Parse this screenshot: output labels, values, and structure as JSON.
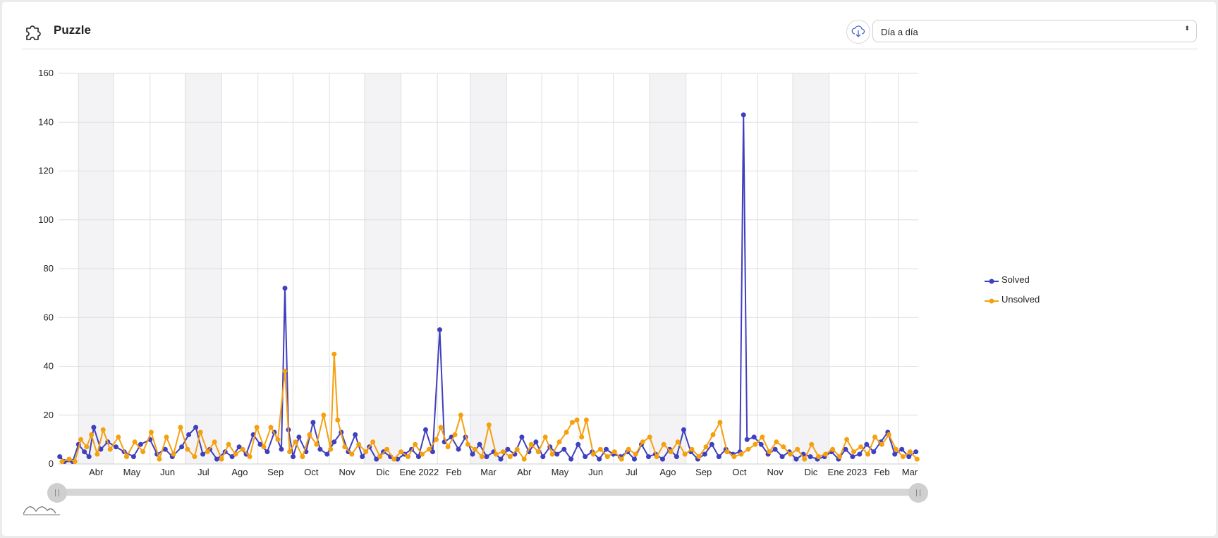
{
  "header": {
    "title": "Puzzle",
    "icon": "puzzle-icon",
    "download_icon": "cloud-download-icon"
  },
  "period_select": {
    "value": "Día a día",
    "arrows": "⬍"
  },
  "colors": {
    "solved": "#3f3fc0",
    "unsolved": "#f5a00f",
    "band": "#f3f3f5",
    "grid": "#dedede"
  },
  "chart_data": {
    "type": "line",
    "title": "",
    "xlabel": "",
    "ylabel": "",
    "x_range": [
      "2021-03-15",
      "2023-03-18"
    ],
    "ylim": [
      0,
      160
    ],
    "y_ticks": [
      0,
      20,
      40,
      60,
      80,
      100,
      120,
      140,
      160
    ],
    "x_ticks": [
      {
        "label": "Abr",
        "date": "2021-04-01"
      },
      {
        "label": "May",
        "date": "2021-05-01"
      },
      {
        "label": "Jun",
        "date": "2021-06-01"
      },
      {
        "label": "Jul",
        "date": "2021-07-01"
      },
      {
        "label": "Ago",
        "date": "2021-08-01"
      },
      {
        "label": "Sep",
        "date": "2021-09-01"
      },
      {
        "label": "Oct",
        "date": "2021-10-01"
      },
      {
        "label": "Nov",
        "date": "2021-11-01"
      },
      {
        "label": "Dic",
        "date": "2021-12-01"
      },
      {
        "label": "Ene 2022",
        "date": "2022-01-01"
      },
      {
        "label": "Feb",
        "date": "2022-02-01"
      },
      {
        "label": "Mar",
        "date": "2022-03-01"
      },
      {
        "label": "Abr",
        "date": "2022-04-01"
      },
      {
        "label": "May",
        "date": "2022-05-01"
      },
      {
        "label": "Jun",
        "date": "2022-06-01"
      },
      {
        "label": "Jul",
        "date": "2022-07-01"
      },
      {
        "label": "Ago",
        "date": "2022-08-01"
      },
      {
        "label": "Sep",
        "date": "2022-09-01"
      },
      {
        "label": "Oct",
        "date": "2022-10-01"
      },
      {
        "label": "Nov",
        "date": "2022-11-01"
      },
      {
        "label": "Dic",
        "date": "2022-12-01"
      },
      {
        "label": "Ene 2023",
        "date": "2023-01-01"
      },
      {
        "label": "Feb",
        "date": "2023-02-01"
      },
      {
        "label": "Mar",
        "date": "2023-03-01"
      }
    ],
    "grid": true,
    "legend_position": "right",
    "series": [
      {
        "name": "Solved",
        "color": "#3f3fc0",
        "points": [
          [
            "2021-03-16",
            3
          ],
          [
            "2021-03-20",
            1
          ],
          [
            "2021-03-27",
            1
          ],
          [
            "2021-04-01",
            8
          ],
          [
            "2021-04-06",
            5
          ],
          [
            "2021-04-10",
            3
          ],
          [
            "2021-04-14",
            15
          ],
          [
            "2021-04-20",
            6
          ],
          [
            "2021-04-26",
            9
          ],
          [
            "2021-05-03",
            7
          ],
          [
            "2021-05-10",
            5
          ],
          [
            "2021-05-18",
            3
          ],
          [
            "2021-05-24",
            8
          ],
          [
            "2021-06-01",
            10
          ],
          [
            "2021-06-07",
            4
          ],
          [
            "2021-06-14",
            6
          ],
          [
            "2021-06-20",
            3
          ],
          [
            "2021-06-28",
            7
          ],
          [
            "2021-07-04",
            12
          ],
          [
            "2021-07-10",
            15
          ],
          [
            "2021-07-16",
            4
          ],
          [
            "2021-07-22",
            6
          ],
          [
            "2021-07-28",
            2
          ],
          [
            "2021-08-04",
            5
          ],
          [
            "2021-08-10",
            3
          ],
          [
            "2021-08-16",
            7
          ],
          [
            "2021-08-22",
            4
          ],
          [
            "2021-08-28",
            12
          ],
          [
            "2021-09-03",
            8
          ],
          [
            "2021-09-09",
            5
          ],
          [
            "2021-09-15",
            13
          ],
          [
            "2021-09-21",
            6
          ],
          [
            "2021-09-24",
            72
          ],
          [
            "2021-09-27",
            14
          ],
          [
            "2021-10-01",
            3
          ],
          [
            "2021-10-06",
            11
          ],
          [
            "2021-10-12",
            5
          ],
          [
            "2021-10-18",
            17
          ],
          [
            "2021-10-24",
            6
          ],
          [
            "2021-10-30",
            4
          ],
          [
            "2021-11-05",
            9
          ],
          [
            "2021-11-11",
            13
          ],
          [
            "2021-11-17",
            5
          ],
          [
            "2021-11-23",
            12
          ],
          [
            "2021-11-29",
            3
          ],
          [
            "2021-12-05",
            7
          ],
          [
            "2021-12-11",
            2
          ],
          [
            "2021-12-17",
            5
          ],
          [
            "2021-12-23",
            3
          ],
          [
            "2021-12-29",
            2
          ],
          [
            "2022-01-04",
            4
          ],
          [
            "2022-01-10",
            6
          ],
          [
            "2022-01-16",
            3
          ],
          [
            "2022-01-22",
            14
          ],
          [
            "2022-01-28",
            5
          ],
          [
            "2022-02-03",
            55
          ],
          [
            "2022-02-07",
            9
          ],
          [
            "2022-02-13",
            11
          ],
          [
            "2022-02-19",
            6
          ],
          [
            "2022-02-25",
            11
          ],
          [
            "2022-03-03",
            4
          ],
          [
            "2022-03-09",
            8
          ],
          [
            "2022-03-15",
            3
          ],
          [
            "2022-03-21",
            5
          ],
          [
            "2022-03-27",
            2
          ],
          [
            "2022-04-02",
            6
          ],
          [
            "2022-04-08",
            4
          ],
          [
            "2022-04-14",
            11
          ],
          [
            "2022-04-20",
            5
          ],
          [
            "2022-04-26",
            9
          ],
          [
            "2022-05-02",
            3
          ],
          [
            "2022-05-08",
            7
          ],
          [
            "2022-05-14",
            4
          ],
          [
            "2022-05-20",
            6
          ],
          [
            "2022-05-26",
            2
          ],
          [
            "2022-06-01",
            8
          ],
          [
            "2022-06-07",
            3
          ],
          [
            "2022-06-13",
            5
          ],
          [
            "2022-06-19",
            2
          ],
          [
            "2022-06-25",
            6
          ],
          [
            "2022-07-01",
            4
          ],
          [
            "2022-07-07",
            3
          ],
          [
            "2022-07-13",
            5
          ],
          [
            "2022-07-19",
            2
          ],
          [
            "2022-07-25",
            8
          ],
          [
            "2022-07-31",
            3
          ],
          [
            "2022-08-06",
            4
          ],
          [
            "2022-08-12",
            2
          ],
          [
            "2022-08-18",
            6
          ],
          [
            "2022-08-24",
            3
          ],
          [
            "2022-08-30",
            14
          ],
          [
            "2022-09-05",
            5
          ],
          [
            "2022-09-11",
            2
          ],
          [
            "2022-09-17",
            4
          ],
          [
            "2022-09-23",
            8
          ],
          [
            "2022-09-29",
            3
          ],
          [
            "2022-10-05",
            6
          ],
          [
            "2022-10-11",
            4
          ],
          [
            "2022-10-17",
            5
          ],
          [
            "2022-10-20",
            143
          ],
          [
            "2022-10-23",
            10
          ],
          [
            "2022-10-29",
            11
          ],
          [
            "2022-11-04",
            8
          ],
          [
            "2022-11-10",
            4
          ],
          [
            "2022-11-16",
            6
          ],
          [
            "2022-11-22",
            3
          ],
          [
            "2022-11-28",
            5
          ],
          [
            "2022-12-04",
            2
          ],
          [
            "2022-12-10",
            4
          ],
          [
            "2022-12-16",
            3
          ],
          [
            "2022-12-22",
            2
          ],
          [
            "2022-12-28",
            3
          ],
          [
            "2023-01-03",
            5
          ],
          [
            "2023-01-09",
            2
          ],
          [
            "2023-01-15",
            6
          ],
          [
            "2023-01-21",
            3
          ],
          [
            "2023-01-27",
            4
          ],
          [
            "2023-02-02",
            8
          ],
          [
            "2023-02-08",
            5
          ],
          [
            "2023-02-14",
            9
          ],
          [
            "2023-02-20",
            13
          ],
          [
            "2023-02-26",
            4
          ],
          [
            "2023-03-04",
            6
          ],
          [
            "2023-03-10",
            3
          ],
          [
            "2023-03-16",
            5
          ]
        ]
      },
      {
        "name": "Unsolved",
        "color": "#f5a00f",
        "points": [
          [
            "2021-03-18",
            1
          ],
          [
            "2021-03-24",
            2
          ],
          [
            "2021-03-29",
            1
          ],
          [
            "2021-04-03",
            10
          ],
          [
            "2021-04-08",
            7
          ],
          [
            "2021-04-12",
            12
          ],
          [
            "2021-04-17",
            4
          ],
          [
            "2021-04-22",
            14
          ],
          [
            "2021-04-28",
            6
          ],
          [
            "2021-05-05",
            11
          ],
          [
            "2021-05-12",
            3
          ],
          [
            "2021-05-19",
            9
          ],
          [
            "2021-05-26",
            5
          ],
          [
            "2021-06-02",
            13
          ],
          [
            "2021-06-09",
            2
          ],
          [
            "2021-06-15",
            11
          ],
          [
            "2021-06-21",
            4
          ],
          [
            "2021-06-27",
            15
          ],
          [
            "2021-07-03",
            6
          ],
          [
            "2021-07-09",
            3
          ],
          [
            "2021-07-14",
            13
          ],
          [
            "2021-07-20",
            5
          ],
          [
            "2021-07-26",
            9
          ],
          [
            "2021-08-01",
            2
          ],
          [
            "2021-08-07",
            8
          ],
          [
            "2021-08-13",
            4
          ],
          [
            "2021-08-19",
            6
          ],
          [
            "2021-08-25",
            3
          ],
          [
            "2021-08-31",
            15
          ],
          [
            "2021-09-06",
            7
          ],
          [
            "2021-09-12",
            15
          ],
          [
            "2021-09-18",
            10
          ],
          [
            "2021-09-24",
            38
          ],
          [
            "2021-09-28",
            5
          ],
          [
            "2021-10-03",
            9
          ],
          [
            "2021-10-09",
            3
          ],
          [
            "2021-10-15",
            12
          ],
          [
            "2021-10-21",
            8
          ],
          [
            "2021-10-27",
            20
          ],
          [
            "2021-11-02",
            6
          ],
          [
            "2021-11-05",
            45
          ],
          [
            "2021-11-08",
            18
          ],
          [
            "2021-11-14",
            7
          ],
          [
            "2021-11-20",
            4
          ],
          [
            "2021-11-26",
            8
          ],
          [
            "2021-12-02",
            5
          ],
          [
            "2021-12-08",
            9
          ],
          [
            "2021-12-14",
            3
          ],
          [
            "2021-12-20",
            6
          ],
          [
            "2021-12-26",
            2
          ],
          [
            "2022-01-01",
            5
          ],
          [
            "2022-01-07",
            3
          ],
          [
            "2022-01-13",
            8
          ],
          [
            "2022-01-19",
            4
          ],
          [
            "2022-01-25",
            6
          ],
          [
            "2022-01-31",
            10
          ],
          [
            "2022-02-04",
            15
          ],
          [
            "2022-02-10",
            7
          ],
          [
            "2022-02-16",
            12
          ],
          [
            "2022-02-21",
            20
          ],
          [
            "2022-02-27",
            8
          ],
          [
            "2022-03-05",
            6
          ],
          [
            "2022-03-11",
            3
          ],
          [
            "2022-03-17",
            16
          ],
          [
            "2022-03-23",
            4
          ],
          [
            "2022-03-29",
            5
          ],
          [
            "2022-04-04",
            3
          ],
          [
            "2022-04-10",
            6
          ],
          [
            "2022-04-16",
            2
          ],
          [
            "2022-04-22",
            8
          ],
          [
            "2022-04-28",
            5
          ],
          [
            "2022-05-04",
            11
          ],
          [
            "2022-05-10",
            4
          ],
          [
            "2022-05-16",
            9
          ],
          [
            "2022-05-22",
            13
          ],
          [
            "2022-05-27",
            17
          ],
          [
            "2022-05-31",
            18
          ],
          [
            "2022-06-04",
            11
          ],
          [
            "2022-06-08",
            18
          ],
          [
            "2022-06-14",
            4
          ],
          [
            "2022-06-20",
            6
          ],
          [
            "2022-06-26",
            3
          ],
          [
            "2022-07-02",
            5
          ],
          [
            "2022-07-08",
            2
          ],
          [
            "2022-07-14",
            6
          ],
          [
            "2022-07-20",
            4
          ],
          [
            "2022-07-26",
            9
          ],
          [
            "2022-08-01",
            11
          ],
          [
            "2022-08-07",
            3
          ],
          [
            "2022-08-13",
            8
          ],
          [
            "2022-08-19",
            5
          ],
          [
            "2022-08-25",
            9
          ],
          [
            "2022-08-31",
            4
          ],
          [
            "2022-09-06",
            6
          ],
          [
            "2022-09-12",
            3
          ],
          [
            "2022-09-18",
            7
          ],
          [
            "2022-09-24",
            12
          ],
          [
            "2022-09-30",
            17
          ],
          [
            "2022-10-06",
            5
          ],
          [
            "2022-10-12",
            3
          ],
          [
            "2022-10-18",
            4
          ],
          [
            "2022-10-24",
            6
          ],
          [
            "2022-10-30",
            8
          ],
          [
            "2022-11-05",
            11
          ],
          [
            "2022-11-11",
            5
          ],
          [
            "2022-11-17",
            9
          ],
          [
            "2022-11-23",
            7
          ],
          [
            "2022-11-29",
            4
          ],
          [
            "2022-12-05",
            6
          ],
          [
            "2022-12-11",
            2
          ],
          [
            "2022-12-17",
            8
          ],
          [
            "2022-12-23",
            3
          ],
          [
            "2022-12-29",
            4
          ],
          [
            "2023-01-04",
            6
          ],
          [
            "2023-01-10",
            3
          ],
          [
            "2023-01-16",
            10
          ],
          [
            "2023-01-22",
            5
          ],
          [
            "2023-01-28",
            7
          ],
          [
            "2023-02-03",
            4
          ],
          [
            "2023-02-09",
            11
          ],
          [
            "2023-02-15",
            8
          ],
          [
            "2023-02-21",
            12
          ],
          [
            "2023-02-27",
            6
          ],
          [
            "2023-03-05",
            3
          ],
          [
            "2023-03-11",
            5
          ],
          [
            "2023-03-17",
            2
          ]
        ]
      }
    ]
  }
}
